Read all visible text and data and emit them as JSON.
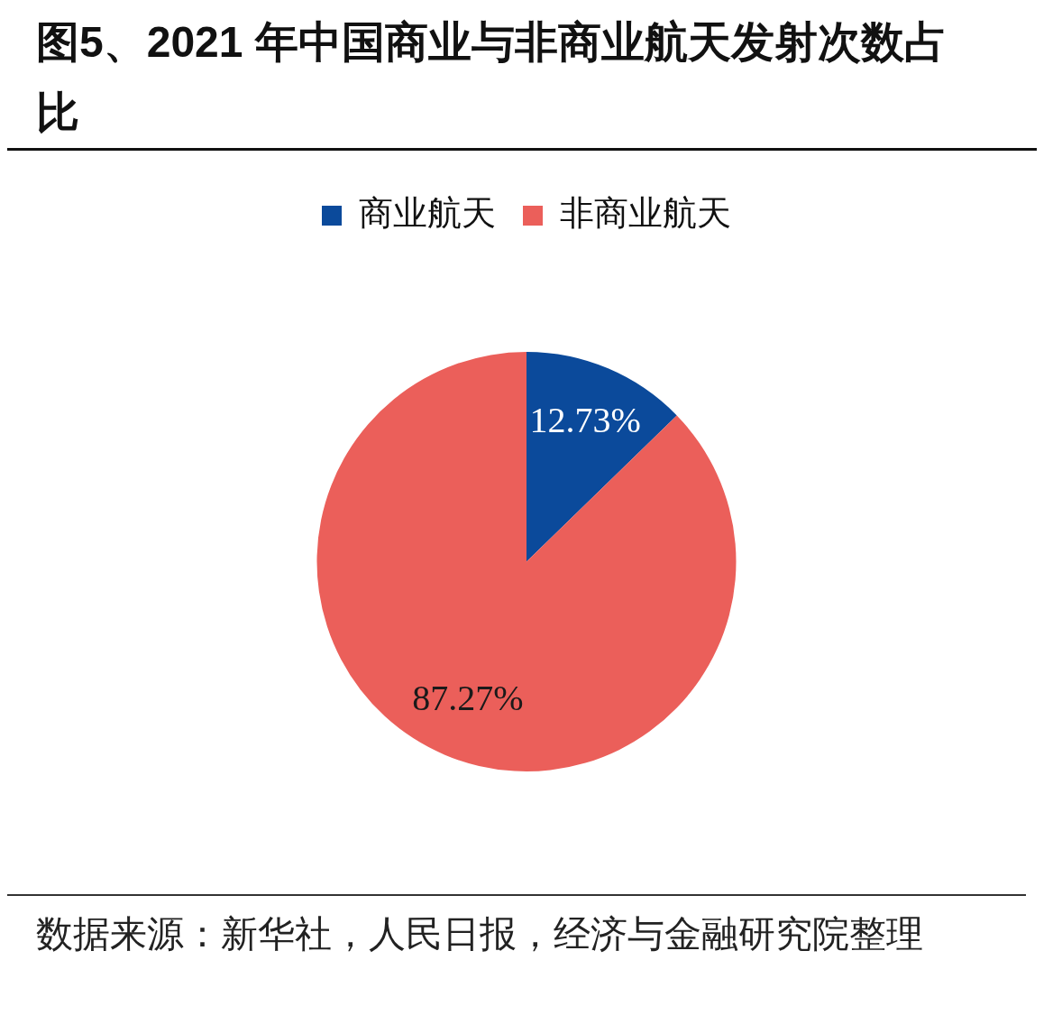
{
  "chart_data": {
    "type": "pie",
    "title": "图5、2021 年中国商业与非商业航天发射次数占比",
    "categories": [
      "商业航天",
      "非商业航天"
    ],
    "values": [
      12.73,
      87.27
    ],
    "colors": [
      "#0b4a9b",
      "#eb5f5a"
    ],
    "value_labels": [
      "12.73%",
      "87.27%"
    ],
    "legend": "top",
    "annotations": [
      "数据来源：新华社，人民日报，经济与金融研究院整理"
    ]
  }
}
